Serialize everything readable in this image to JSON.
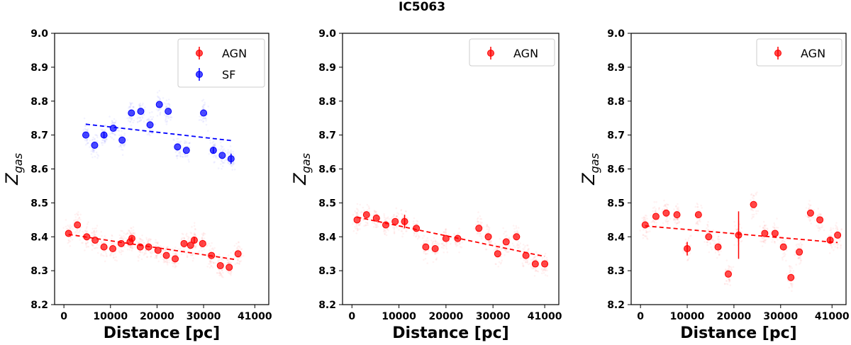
{
  "figure": {
    "title": "IC5063"
  },
  "colors": {
    "agn": "#ff0000",
    "sf": "#0000ff",
    "cloud": "#ff0000"
  },
  "chart_data": [
    {
      "type": "scatter",
      "panel": "left",
      "xlabel": "Distance [pc]",
      "ylabel_main": "Z",
      "ylabel_sub": "gas",
      "xlim": [
        -2000,
        44000
      ],
      "ylim": [
        8.2,
        9.0
      ],
      "xticks": [
        0,
        10000,
        20000,
        30000,
        41000
      ],
      "xtick_labels": [
        "0",
        "10000",
        "20000",
        "30000",
        "41000"
      ],
      "yticks": [
        8.2,
        8.3,
        8.4,
        8.5,
        8.6,
        8.7,
        8.8,
        8.9,
        9.0
      ],
      "ytick_labels": [
        "8.2",
        "8.3",
        "8.4",
        "8.5",
        "8.6",
        "8.7",
        "8.8",
        "8.9",
        "9.0"
      ],
      "legend": {
        "position": "top-right",
        "entries": [
          "AGN",
          "SF"
        ]
      },
      "series": [
        {
          "name": "AGN",
          "color": "#ff0000",
          "x": [
            1000,
            2900,
            4900,
            6700,
            8600,
            10500,
            12300,
            14200,
            14600,
            16400,
            18200,
            20200,
            22000,
            23900,
            25800,
            27200,
            28000,
            29800,
            31700,
            33600,
            35500,
            37400
          ],
          "y": [
            8.41,
            8.435,
            8.4,
            8.39,
            8.37,
            8.365,
            8.38,
            8.385,
            8.395,
            8.37,
            8.37,
            8.36,
            8.345,
            8.335,
            8.38,
            8.375,
            8.39,
            8.38,
            8.345,
            8.315,
            8.31,
            8.35
          ],
          "err": [
            0,
            0,
            0,
            0,
            0,
            0,
            0,
            0,
            0.006,
            0,
            0,
            0,
            0,
            0,
            0,
            0,
            0.01,
            0,
            0,
            0,
            0,
            0
          ],
          "fit": [
            [
              1000,
              8.407
            ],
            [
              36800,
              8.333
            ]
          ]
        },
        {
          "name": "SF",
          "color": "#0000ff",
          "x": [
            4700,
            6600,
            8600,
            10600,
            12500,
            14500,
            16500,
            18500,
            20500,
            22400,
            24400,
            26300,
            30000,
            32100,
            34000,
            35900
          ],
          "y": [
            8.7,
            8.67,
            8.7,
            8.72,
            8.685,
            8.765,
            8.77,
            8.73,
            8.79,
            8.77,
            8.665,
            8.655,
            8.765,
            8.655,
            8.64,
            8.63
          ],
          "err": [
            0,
            0,
            0.01,
            0,
            0,
            0,
            0,
            0,
            0,
            0,
            0,
            0,
            0,
            0.01,
            0,
            0.015
          ],
          "fit": [
            [
              4700,
              8.732
            ],
            [
              36400,
              8.683
            ]
          ]
        }
      ]
    },
    {
      "type": "scatter",
      "panel": "middle",
      "xlabel": "Distance [pc]",
      "ylabel_main": "Z",
      "ylabel_sub": "gas",
      "xlim": [
        -2000,
        44000
      ],
      "ylim": [
        8.2,
        9.0
      ],
      "xticks": [
        0,
        10000,
        20000,
        30000,
        41000
      ],
      "xtick_labels": [
        "0",
        "10000",
        "20000",
        "30000",
        "41000"
      ],
      "yticks": [
        8.2,
        8.3,
        8.4,
        8.5,
        8.6,
        8.7,
        8.8,
        8.9,
        9.0
      ],
      "ytick_labels": [
        "8.2",
        "8.3",
        "8.4",
        "8.5",
        "8.6",
        "8.7",
        "8.8",
        "8.9",
        "9.0"
      ],
      "legend": {
        "position": "top-right",
        "entries": [
          "AGN"
        ]
      },
      "series": [
        {
          "name": "AGN",
          "color": "#ff0000",
          "x": [
            1100,
            3100,
            5200,
            7200,
            9200,
            11200,
            13700,
            15700,
            17700,
            20000,
            22500,
            27000,
            29000,
            31000,
            32800,
            35000,
            37000,
            39000,
            41000
          ],
          "y": [
            8.45,
            8.465,
            8.455,
            8.435,
            8.445,
            8.445,
            8.425,
            8.37,
            8.365,
            8.395,
            8.395,
            8.425,
            8.4,
            8.35,
            8.385,
            8.4,
            8.345,
            8.32,
            8.32
          ],
          "err": [
            0,
            0,
            0,
            0,
            0,
            0.02,
            0,
            0,
            0,
            0,
            0,
            0,
            0,
            0,
            0,
            0,
            0,
            0,
            0
          ],
          "fit": [
            [
              1100,
              8.458
            ],
            [
              41000,
              8.342
            ]
          ]
        }
      ]
    },
    {
      "type": "scatter",
      "panel": "right",
      "xlabel": "Distance [pc]",
      "ylabel_main": "Z",
      "ylabel_sub": "gas",
      "xlim": [
        -2000,
        44000
      ],
      "ylim": [
        8.2,
        9.0
      ],
      "xticks": [
        0,
        10000,
        20000,
        30000,
        41000
      ],
      "xtick_labels": [
        "0",
        "10000",
        "20000",
        "30000",
        "41000"
      ],
      "yticks": [
        8.2,
        8.3,
        8.4,
        8.5,
        8.6,
        8.7,
        8.8,
        8.9,
        9.0
      ],
      "ytick_labels": [
        "8.2",
        "8.3",
        "8.4",
        "8.5",
        "8.6",
        "8.7",
        "8.8",
        "8.9",
        "9.0"
      ],
      "legend": {
        "position": "top-right",
        "entries": [
          "AGN"
        ]
      },
      "series": [
        {
          "name": "AGN",
          "color": "#ff0000",
          "x": [
            1000,
            3300,
            5500,
            7800,
            10000,
            12400,
            14600,
            16600,
            18800,
            21000,
            24200,
            26600,
            28800,
            30600,
            32200,
            34000,
            36400,
            38400,
            40600,
            42200
          ],
          "y": [
            8.435,
            8.46,
            8.47,
            8.465,
            8.365,
            8.465,
            8.4,
            8.37,
            8.29,
            8.405,
            8.495,
            8.41,
            8.41,
            8.37,
            8.28,
            8.355,
            8.47,
            8.45,
            8.39,
            8.405
          ],
          "err": [
            0,
            0,
            0,
            0,
            0.02,
            0,
            0,
            0,
            0,
            0.07,
            0,
            0,
            0,
            0,
            0,
            0,
            0,
            0,
            0.01,
            0
          ],
          "fit": [
            [
              1000,
              8.432
            ],
            [
              42200,
              8.383
            ]
          ]
        }
      ]
    }
  ]
}
